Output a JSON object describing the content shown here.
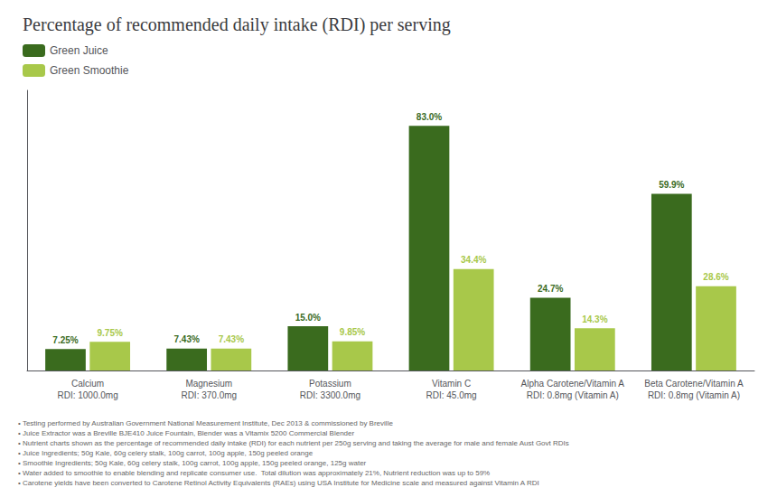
{
  "chart_data": {
    "type": "bar",
    "title": "Percentage of recommended daily intake (RDI) per serving",
    "categories": [
      "Calcium\nRDI: 1000.0mg",
      "Magnesium\nRDI: 370.0mg",
      "Potassium\nRDI: 3300.0mg",
      "Vitamin C\nRDI: 45.0mg",
      "Alpha Carotene/Vitamin A\nRDI: 0.8mg (Vitamin A)",
      "Beta Carotene/Vitamin A\nRDI: 0.8mg (Vitamin A)"
    ],
    "series": [
      {
        "name": "Green Juice",
        "color": "#3a6b1e",
        "values": [
          7.25,
          7.43,
          15.0,
          83.0,
          24.7,
          59.9
        ],
        "value_labels": [
          "7.25%",
          "7.43%",
          "15.0%",
          "83.0%",
          "24.7%",
          "59.9%"
        ]
      },
      {
        "name": "Green Smoothie",
        "color": "#a8c84a",
        "values": [
          9.75,
          7.43,
          9.85,
          34.4,
          14.3,
          28.6
        ],
        "value_labels": [
          "9.75%",
          "7.43%",
          "9.85%",
          "34.4%",
          "14.3%",
          "28.6%"
        ]
      }
    ],
    "ylim": [
      0,
      95
    ],
    "grid": false,
    "legend": "upper left",
    "data_labels": true,
    "tick_labels": "x",
    "annotations": [
      "• Testing performed by Australian Government National Measurement Institute, Dec 2013 & commissioned by Breville",
      "• Juice Extractor was a Breville BJE410 Juice Fountain, Blender was a Vitamix 5200 Commercial Blender",
      "• Nutrient charts shown as the percentage of recommended daily intake (RDI) for each nutrient per 250g serving and taking the average for male and female Aust Govt RDIs",
      "• Juice Ingredients; 50g Kale, 60g celery stalk, 100g carrot, 100g apple, 150g peeled orange",
      "• Smoothie Ingredients; 50g Kale, 60g celery stalk, 100g carrot, 100g apple, 150g peeled orange, 125g water",
      "• Water added to smoothie to enable blending and replicate consumer use.  Total dilution was approximately 21%, Nutrient reduction was up to 59%",
      "• Carotene yields have been converted to Carotene Retinol Activity Equivalents (RAEs) using USA Institute for Medicine scale and measured against Vitamin A RDI"
    ]
  }
}
